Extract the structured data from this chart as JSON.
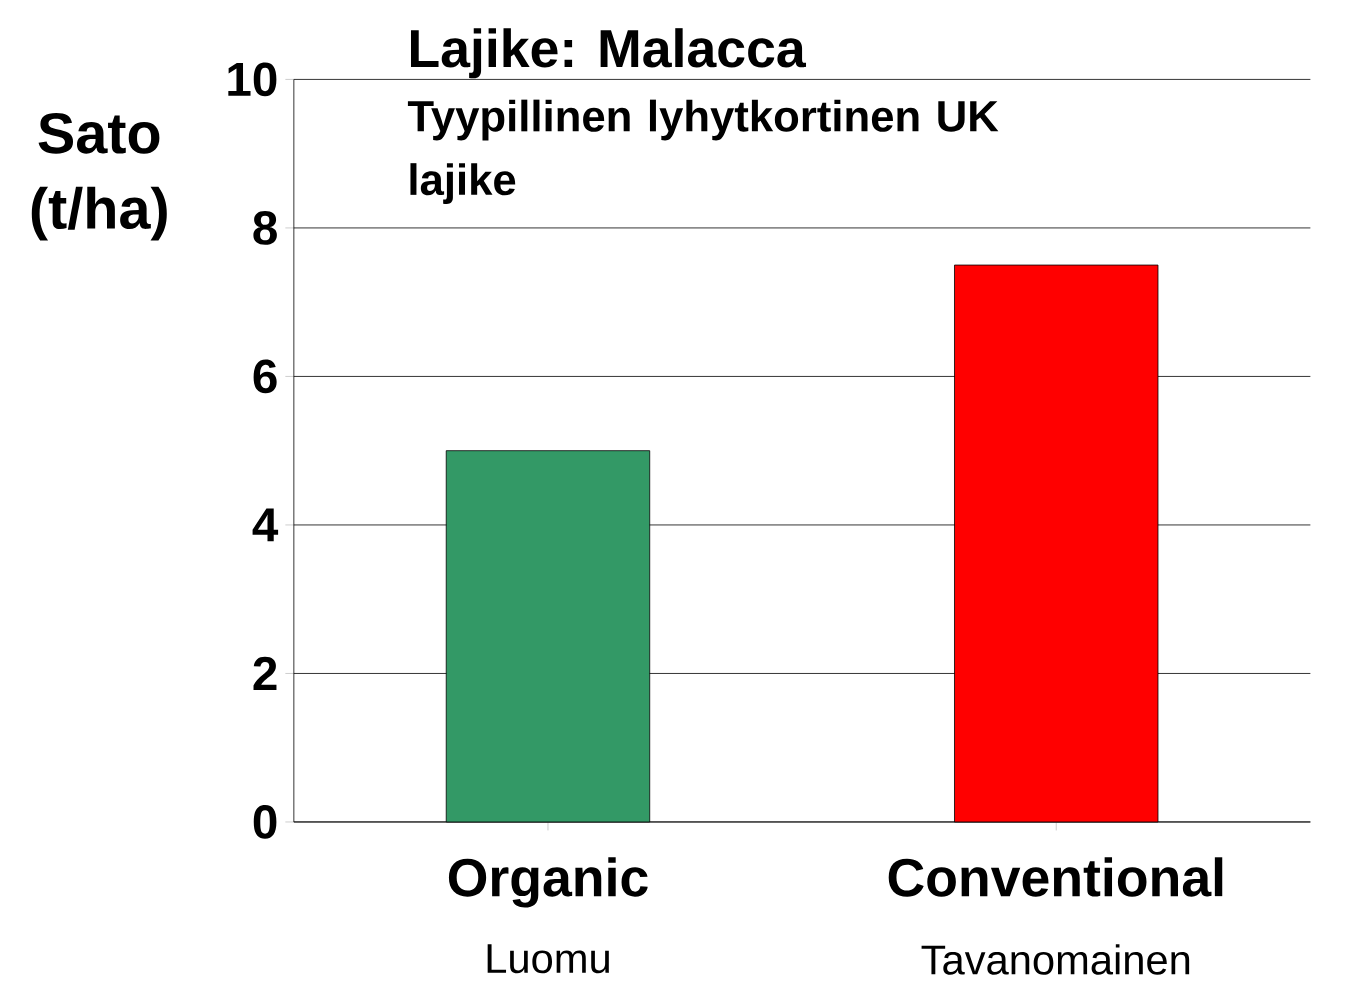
{
  "chart_data": {
    "type": "bar",
    "title": "Lajike: Malacca",
    "subtitle": "Tyypillinen lyhytkortinen UK lajike",
    "ylabel": "Sato (t/ha)",
    "categories": [
      "Organic",
      "Conventional"
    ],
    "values": [
      5.0,
      7.5
    ],
    "colors": [
      "#339966",
      "#ff0000"
    ],
    "annotations": [
      "Luomu",
      "Tavanomainen"
    ],
    "ylim": [
      0,
      10
    ],
    "yticks": [
      0,
      2,
      4,
      6,
      8,
      10
    ],
    "grid": "y"
  }
}
